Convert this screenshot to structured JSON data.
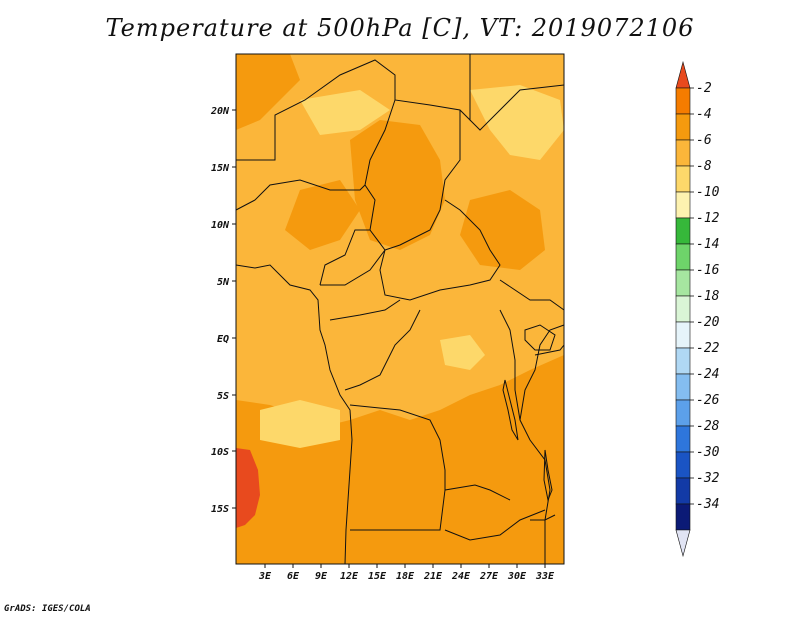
{
  "title": "Temperature at 500hPa [C], VT: 2019072106",
  "credit": "GrADS: IGES/COLA",
  "lat_labels": [
    "20N",
    "15N",
    "10N",
    "5N",
    "EQ",
    "5S",
    "10S",
    "15S"
  ],
  "lon_labels": [
    "3E",
    "6E",
    "9E",
    "12E",
    "15E",
    "18E",
    "21E",
    "24E",
    "27E",
    "30E",
    "33E"
  ],
  "colorbar": {
    "labels": [
      "-2",
      "-4",
      "-6",
      "-8",
      "-10",
      "-12",
      "-14",
      "-16",
      "-18",
      "-20",
      "-22",
      "-24",
      "-26",
      "-28",
      "-30",
      "-32",
      "-34"
    ],
    "colors": [
      "#e84a1e",
      "#f57c00",
      "#f59a0e",
      "#fbb63a",
      "#fdd86a",
      "#fdf2b0",
      "#36b83a",
      "#6ed46a",
      "#a6e6a0",
      "#daf5d6",
      "#e6f4fa",
      "#b0d8f4",
      "#84bdf0",
      "#5ca0ea",
      "#2e76dc",
      "#1a54c4",
      "#123aa6",
      "#0b1a76",
      "#e1e4f4"
    ]
  },
  "field_colors": {
    "warm": "#f59a0e",
    "mid": "#fbb63a",
    "cool": "#fdd86a",
    "hot": "#e84a1e"
  }
}
